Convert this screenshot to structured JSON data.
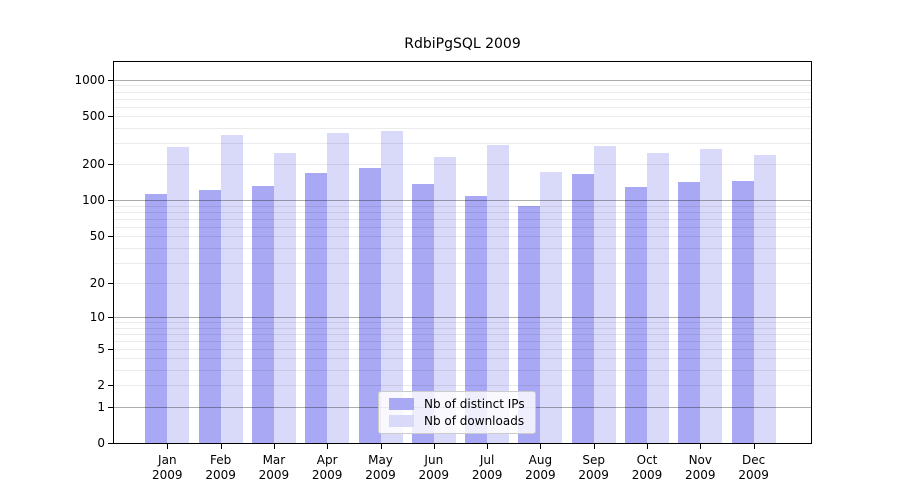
{
  "chart_data": {
    "type": "bar",
    "title": "RdbiPgSQL 2009",
    "xlabel": "",
    "ylabel": "",
    "y_scale": "log10(1+v)",
    "ylim": [
      0,
      1200
    ],
    "grid": true,
    "legend_position": "bottom-center-inside",
    "months": [
      "Jan",
      "Feb",
      "Mar",
      "Apr",
      "May",
      "Jun",
      "Jul",
      "Aug",
      "Sep",
      "Oct",
      "Nov",
      "Dec"
    ],
    "year": "2009",
    "y_ticks": [
      0,
      1,
      2,
      5,
      10,
      20,
      50,
      100,
      200,
      500,
      1000
    ],
    "y_major_gridlines": [
      1,
      10,
      100,
      1000
    ],
    "y_minor_gridlines": [
      2,
      3,
      4,
      5,
      6,
      7,
      8,
      9,
      20,
      30,
      40,
      50,
      60,
      70,
      80,
      90,
      200,
      300,
      400,
      500,
      600,
      700,
      800,
      900
    ],
    "series": [
      {
        "name": "Nb of distinct IPs",
        "color": "#a8a8f4",
        "values": [
          113,
          123,
          132,
          170,
          186,
          137,
          108,
          90,
          167,
          130,
          142,
          146
        ]
      },
      {
        "name": "Nb of downloads",
        "color": "#d9d9f9",
        "values": [
          277,
          349,
          248,
          366,
          380,
          231,
          290,
          173,
          286,
          250,
          266,
          238
        ]
      }
    ],
    "axis_color": "#000000",
    "grid_major_color": "#b3b3b3",
    "grid_minor_color": "#ebebeb"
  }
}
